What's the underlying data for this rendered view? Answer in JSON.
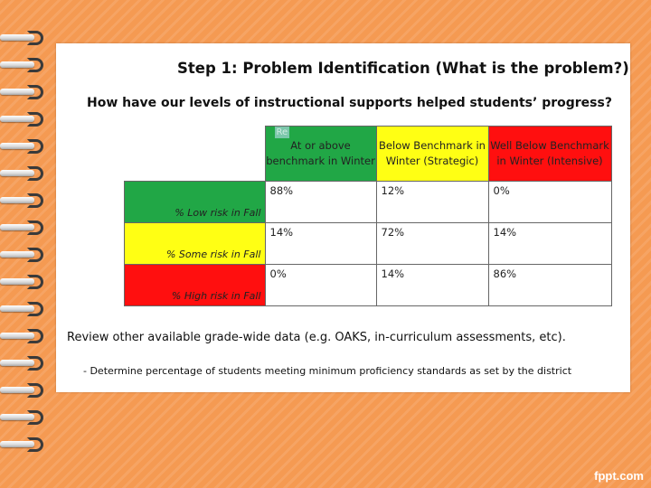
{
  "slide": {
    "title": "Step 1: Problem Identification (What is the problem?)",
    "question": "How have our levels of instructional  supports helped students’ progress?",
    "review_text": "Review other available grade-wide data (e.g. OAKS, in-curriculum assessments, etc).",
    "bullet_text": "- Determine percentage of students meeting minimum proficiency standards as set by the district"
  },
  "table": {
    "ghost_header_text": "Re",
    "headers": [
      "At or above benchmark in Winter",
      "Below Benchmark in Winter (Strategic)",
      "Well Below Benchmark in Winter (Intensive)"
    ],
    "rows": [
      {
        "label": "% Low risk in Fall",
        "values": [
          "88%",
          "12%",
          "0%"
        ]
      },
      {
        "label": "% Some risk in Fall",
        "values": [
          "14%",
          "72%",
          "14%"
        ]
      },
      {
        "label": "% High risk in Fall",
        "values": [
          "0%",
          "14%",
          "86%"
        ]
      }
    ]
  },
  "colors": {
    "green": "#21a746",
    "yellow": "#ffff14",
    "red": "#ff0f0f",
    "background": "#f59a52"
  },
  "watermark": "fppt.com"
}
